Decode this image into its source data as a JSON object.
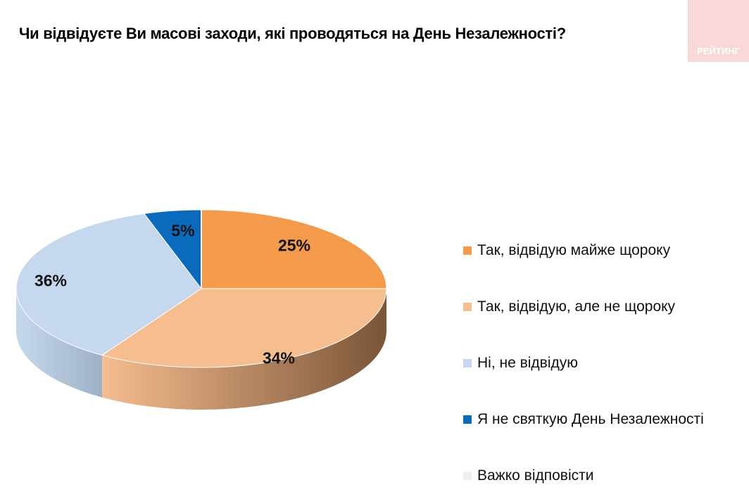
{
  "title": "Чи відвідуєте Ви масові заходи, які проводяться на День Незалежності?",
  "logo": "РЕЙТИНГ",
  "chart_data": {
    "type": "pie",
    "variant": "3d",
    "title": "Чи відвідуєте Ви масові заходи, які проводяться на День Незалежності?",
    "legend_position": "right",
    "slices": [
      {
        "name": "Так, відвідую майже щороку",
        "value": 25,
        "label": "25%",
        "color": "#f39a4b",
        "side": "#b06a2f"
      },
      {
        "name": "Так, відвідую, але не щороку",
        "value": 34,
        "label": "34%",
        "color": "#f6bd8f",
        "side": "#7a5538"
      },
      {
        "name": "Ні, не відвідую",
        "value": 36,
        "label": "36%",
        "color": "#c5d8ee",
        "side": "#9fb1c7"
      },
      {
        "name": "Я не святкую День Незалежності",
        "value": 5,
        "label": "5%",
        "color": "#0a6bbd",
        "side": "#064e8a"
      },
      {
        "name": "Важко відповісти",
        "value": 0,
        "label": "",
        "color": "#efefef",
        "side": "#cccccc"
      }
    ]
  }
}
